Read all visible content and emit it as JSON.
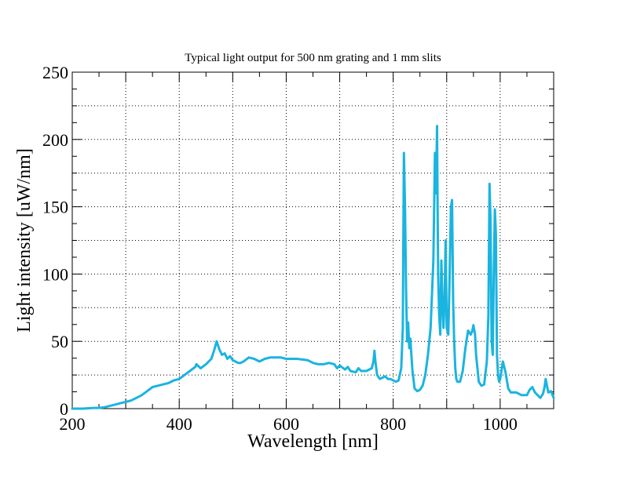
{
  "chart_data": {
    "type": "line",
    "title": "Typical light output for 500 nm grating and 1 mm slits",
    "xlabel": "Wavelength [nm]",
    "ylabel": "Light intensity [uW/nm]",
    "xlim": [
      200,
      1100
    ],
    "ylim": [
      0,
      250
    ],
    "x_ticks": [
      200,
      400,
      600,
      800,
      1000
    ],
    "y_ticks": [
      0,
      50,
      100,
      150,
      200,
      250
    ],
    "grid": true,
    "grid_style": "dotted",
    "color": "#1ab4e0",
    "series": [
      {
        "x": [
          200,
          220,
          240,
          250,
          260,
          270,
          280,
          290,
          300,
          310,
          320,
          330,
          340,
          350,
          360,
          370,
          380,
          390,
          400,
          410,
          420,
          430,
          432,
          440,
          450,
          460,
          465,
          470,
          475,
          480,
          485,
          490,
          495,
          500,
          505,
          510,
          515,
          520,
          530,
          540,
          550,
          560,
          570,
          580,
          590,
          600,
          620,
          640,
          650,
          660,
          670,
          680,
          690,
          695,
          700,
          710,
          715,
          720,
          730,
          735,
          740,
          750,
          760,
          763,
          765,
          767,
          770,
          775,
          780,
          785,
          790,
          795,
          800,
          805,
          810,
          815,
          818,
          820,
          822,
          824,
          826,
          828,
          830,
          832,
          834,
          836,
          840,
          845,
          850,
          855,
          860,
          865,
          870,
          875,
          878,
          880,
          882,
          883,
          884,
          886,
          888,
          890,
          892,
          894,
          896,
          898,
          900,
          903,
          905,
          908,
          910,
          912,
          914,
          916,
          918,
          920,
          925,
          930,
          935,
          940,
          945,
          948,
          950,
          953,
          955,
          958,
          960,
          965,
          970,
          975,
          978,
          980,
          982,
          984,
          986,
          988,
          990,
          992,
          994,
          996,
          998,
          1000,
          1005,
          1010,
          1013,
          1015,
          1020,
          1025,
          1030,
          1040,
          1050,
          1055,
          1060,
          1065,
          1070,
          1075,
          1080,
          1083,
          1085,
          1088,
          1090,
          1095,
          1100
        ],
        "y": [
          0,
          0,
          0.5,
          0.5,
          1,
          2,
          3,
          4,
          5,
          6,
          8,
          10,
          13,
          16,
          17,
          18,
          19,
          21,
          22,
          25,
          28,
          31,
          33,
          30,
          33,
          37,
          43,
          50,
          44,
          40,
          41,
          37,
          39,
          36,
          35,
          34,
          34,
          35,
          38,
          37,
          35,
          37,
          38,
          38,
          38,
          37,
          37,
          36,
          34,
          33,
          33,
          34,
          33,
          30,
          32,
          29,
          31,
          28,
          27,
          30,
          28,
          28,
          30,
          35,
          43,
          34,
          25,
          22,
          23,
          24,
          22,
          22,
          21,
          20,
          21,
          30,
          60,
          190,
          150,
          90,
          50,
          64,
          45,
          52,
          40,
          28,
          15,
          13,
          14,
          17,
          25,
          40,
          60,
          110,
          190,
          160,
          210,
          150,
          100,
          70,
          55,
          110,
          80,
          60,
          80,
          125,
          60,
          55,
          90,
          150,
          155,
          80,
          50,
          30,
          22,
          20,
          20,
          28,
          45,
          58,
          55,
          58,
          62,
          55,
          40,
          28,
          20,
          17,
          18,
          35,
          70,
          167,
          140,
          50,
          40,
          100,
          148,
          130,
          40,
          25,
          20,
          22,
          35,
          27,
          20,
          15,
          12,
          12,
          12,
          10,
          10,
          14,
          16,
          12,
          10,
          8,
          11,
          16,
          22,
          16,
          12,
          13,
          8
        ]
      }
    ]
  }
}
